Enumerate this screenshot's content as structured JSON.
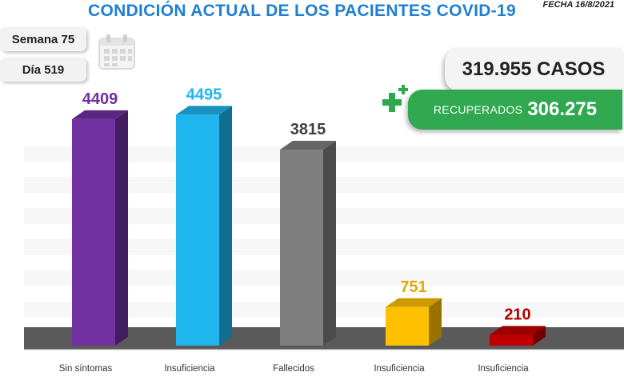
{
  "header": {
    "title": "CONDICIÓN ACTUAL DE LOS PACIENTES COVID-19",
    "date": "FECHA 16/8/2021"
  },
  "week_label": "Semana 75",
  "day_label": "Día 519",
  "totals": {
    "cases": "319.955 CASOS",
    "recovered_label": "RECUPERADOS",
    "recovered_value": "306.275"
  },
  "icons": [
    "calendar-icon",
    "plus-icon"
  ],
  "chart_data": {
    "type": "bar",
    "categories": [
      "Sin síntomas",
      "Insuficiencia",
      "Fallecidos",
      "Insuficiencia",
      "Insuficiencia"
    ],
    "values": [
      4409,
      4495,
      3815,
      751,
      210
    ],
    "value_labels": [
      "4409",
      "4495",
      "3815",
      "751",
      "210"
    ],
    "colors": [
      "#7030a0",
      "#1fb6f0",
      "#7f7f7f",
      "#ffc000",
      "#c00000"
    ],
    "label_colors": [
      "#7030a0",
      "#1fb6f0",
      "#404040",
      "#e6a800",
      "#b00000"
    ],
    "ylim": [
      0,
      4500
    ],
    "grid": true,
    "legend": "none"
  }
}
